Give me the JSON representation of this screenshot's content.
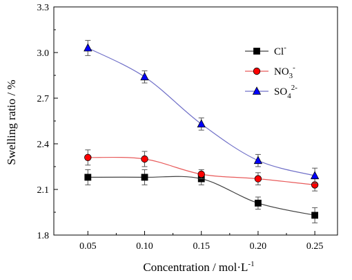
{
  "chart_data": {
    "type": "line",
    "xlabel": "Concentration / mol·L",
    "xlabel_sup": "-1",
    "ylabel": "Swelling ratio / %",
    "xlim": [
      0.02,
      0.27
    ],
    "ylim": [
      1.8,
      3.3
    ],
    "x_ticks": [
      "0.05",
      "0.10",
      "0.15",
      "0.20",
      "0.25"
    ],
    "y_ticks": [
      "1.8",
      "2.1",
      "2.4",
      "2.7",
      "3.0",
      "3.3"
    ],
    "x": [
      0.05,
      0.1,
      0.15,
      0.2,
      0.25
    ],
    "grid": false,
    "legend_position": "top-right",
    "series": [
      {
        "key": "cl",
        "name": "Cl",
        "name_sup": "-",
        "name_sub": "",
        "color": "#000000",
        "line_color": "#404040",
        "marker": "square",
        "values": [
          2.18,
          2.18,
          2.17,
          2.01,
          1.93
        ],
        "errors": [
          0.05,
          0.05,
          0.04,
          0.04,
          0.05
        ]
      },
      {
        "key": "no3",
        "name": "NO",
        "name_sub": "3",
        "name_sup": "-",
        "color": "#ff0000",
        "line_color": "#e85a5a",
        "marker": "circle",
        "values": [
          2.31,
          2.3,
          2.2,
          2.17,
          2.13
        ],
        "errors": [
          0.05,
          0.05,
          0.03,
          0.04,
          0.04
        ]
      },
      {
        "key": "so4",
        "name": "SO",
        "name_sub": "4",
        "name_sup": "2-",
        "color": "#0000ff",
        "line_color": "#7070c8",
        "marker": "triangle",
        "values": [
          3.03,
          2.84,
          2.53,
          2.29,
          2.19
        ],
        "errors": [
          0.05,
          0.04,
          0.04,
          0.04,
          0.05
        ]
      }
    ]
  }
}
